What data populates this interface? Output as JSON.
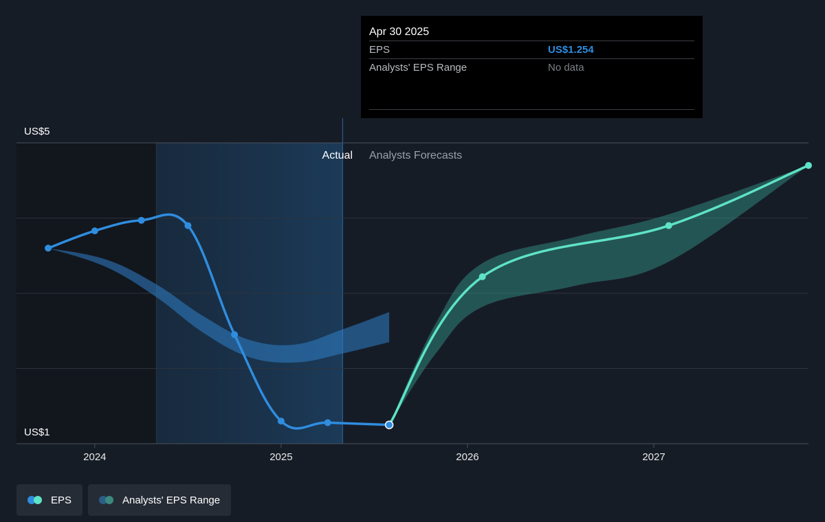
{
  "chart_data": {
    "type": "line",
    "y_axis": {
      "labels": [
        "US$5",
        "US$1"
      ],
      "min": 1,
      "max": 5,
      "gridlines": [
        5,
        4,
        3,
        2,
        1
      ]
    },
    "x_axis": {
      "ticks": [
        {
          "label": "2024",
          "value": 2024.0
        },
        {
          "label": "2025",
          "value": 2025.0
        },
        {
          "label": "2026",
          "value": 2026.0
        },
        {
          "label": "2027",
          "value": 2027.0
        }
      ],
      "min": 2023.58,
      "max": 2027.83
    },
    "regions": {
      "actual_label": "Actual",
      "forecast_label": "Analysts Forecasts",
      "divider_x": 2025.33,
      "highlight_start_x": 2024.33
    },
    "series": [
      {
        "name": "EPS",
        "kind": "actual",
        "color": "#2f8ddf",
        "points": [
          {
            "x": 2023.75,
            "y": 3.6
          },
          {
            "x": 2024.0,
            "y": 3.83
          },
          {
            "x": 2024.25,
            "y": 3.97
          },
          {
            "x": 2024.5,
            "y": 3.9
          },
          {
            "x": 2024.75,
            "y": 2.45
          },
          {
            "x": 2025.0,
            "y": 1.3
          },
          {
            "x": 2025.25,
            "y": 1.28
          },
          {
            "x": 2025.58,
            "y": 1.25
          }
        ]
      },
      {
        "name": "EPS",
        "kind": "forecast",
        "color": "#5ee3c6",
        "points": [
          {
            "x": 2025.58,
            "y": 1.25
          },
          {
            "x": 2026.08,
            "y": 3.22
          },
          {
            "x": 2027.08,
            "y": 3.9
          },
          {
            "x": 2027.83,
            "y": 4.7
          }
        ]
      }
    ],
    "ranges": [
      {
        "name": "Analysts' EPS Range",
        "kind": "past",
        "color": "#2f7fc8",
        "upper": [
          {
            "x": 2023.75,
            "y": 3.6
          },
          {
            "x": 2024.06,
            "y": 3.45
          },
          {
            "x": 2024.33,
            "y": 3.12
          },
          {
            "x": 2024.58,
            "y": 2.7
          },
          {
            "x": 2024.83,
            "y": 2.38
          },
          {
            "x": 2025.08,
            "y": 2.32
          },
          {
            "x": 2025.33,
            "y": 2.52
          },
          {
            "x": 2025.58,
            "y": 2.75
          }
        ],
        "lower": [
          {
            "x": 2023.75,
            "y": 3.6
          },
          {
            "x": 2024.06,
            "y": 3.35
          },
          {
            "x": 2024.33,
            "y": 2.95
          },
          {
            "x": 2024.58,
            "y": 2.48
          },
          {
            "x": 2024.83,
            "y": 2.15
          },
          {
            "x": 2025.08,
            "y": 2.08
          },
          {
            "x": 2025.33,
            "y": 2.2
          },
          {
            "x": 2025.58,
            "y": 2.35
          }
        ]
      },
      {
        "name": "Analysts' EPS Range",
        "kind": "forecast",
        "color": "#3aa596",
        "upper": [
          {
            "x": 2025.58,
            "y": 1.25
          },
          {
            "x": 2025.83,
            "y": 2.6
          },
          {
            "x": 2026.08,
            "y": 3.4
          },
          {
            "x": 2026.58,
            "y": 3.75
          },
          {
            "x": 2027.08,
            "y": 4.05
          },
          {
            "x": 2027.83,
            "y": 4.7
          }
        ],
        "lower": [
          {
            "x": 2025.58,
            "y": 1.25
          },
          {
            "x": 2025.83,
            "y": 2.2
          },
          {
            "x": 2026.08,
            "y": 2.82
          },
          {
            "x": 2026.58,
            "y": 3.1
          },
          {
            "x": 2027.08,
            "y": 3.42
          },
          {
            "x": 2027.83,
            "y": 4.7
          }
        ]
      }
    ],
    "highlight_point": {
      "x": 2025.58,
      "y": 1.25
    }
  },
  "tooltip": {
    "date": "Apr 30 2025",
    "rows": [
      {
        "label": "EPS",
        "value": "US$1.254"
      },
      {
        "label": "Analysts' EPS Range",
        "value": "No data"
      }
    ]
  },
  "legend": {
    "items": [
      {
        "label": "EPS",
        "colors": [
          "#2f8ddf",
          "#5ee3c6"
        ]
      },
      {
        "label": "Analysts' EPS Range",
        "colors": [
          "#2b5f86",
          "#3a8a80"
        ]
      }
    ]
  }
}
